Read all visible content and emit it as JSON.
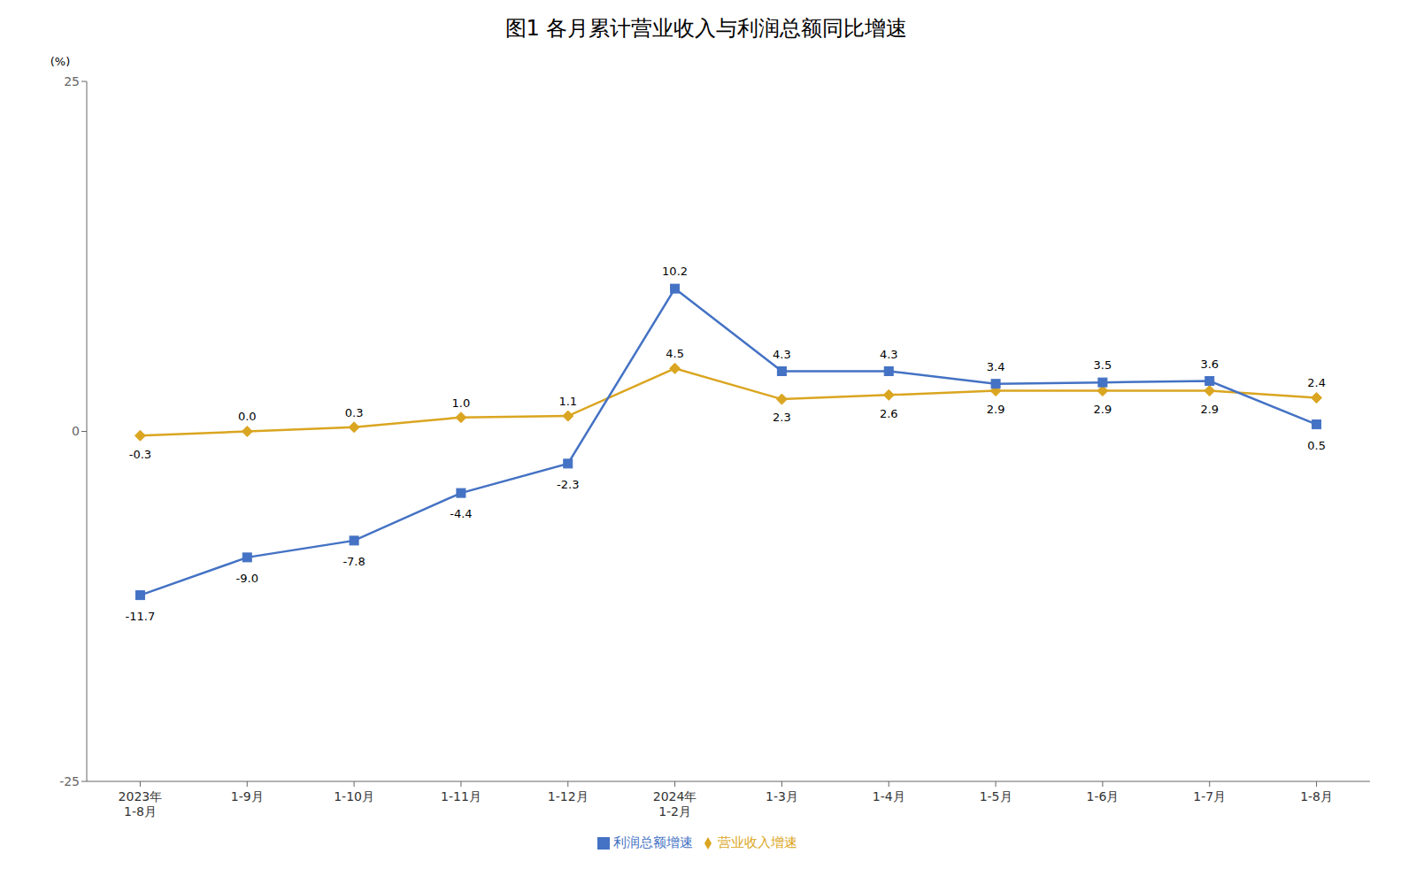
{
  "chart_data": {
    "type": "line",
    "title": "图1  各月累计营业收入与利润总额同比增速",
    "y_label": "(%)",
    "categories": [
      "2023年\n1-8月",
      "1-9月",
      "1-10月",
      "1-11月",
      "1-12月",
      "2024年\n1-2月",
      "1-3月",
      "1-4月",
      "1-5月",
      "1-6月",
      "1-7月",
      "1-8月"
    ],
    "series": [
      {
        "name": "营业收入增速",
        "color": "#DAA520",
        "marker": "diamond",
        "values": [
          -0.3,
          0.0,
          0.3,
          1.0,
          1.1,
          4.5,
          2.3,
          2.6,
          2.9,
          2.9,
          2.9,
          2.4
        ],
        "value_labels": [
          "-0.3",
          "0.0",
          "0.3",
          "1.0",
          "1.1",
          "4.5",
          "2.3",
          "2.6",
          "2.9",
          "2.9",
          "2.9",
          "2.4"
        ]
      },
      {
        "name": "利润总额增速",
        "color": "#4472C4",
        "marker": "square",
        "values": [
          -11.7,
          -9.0,
          -7.8,
          -4.4,
          -2.3,
          10.2,
          4.3,
          4.3,
          3.4,
          3.5,
          3.6,
          0.5
        ],
        "value_labels": [
          "-11.7",
          "-9.0",
          "-7.8",
          "-4.4",
          "-2.3",
          "10.2",
          "4.3",
          "4.3",
          "3.4",
          "3.5",
          "3.6",
          "0.5"
        ]
      }
    ],
    "ylim": [
      -25,
      25
    ],
    "yticks": [
      -25,
      0,
      25
    ],
    "grid": false,
    "legend": "bottom",
    "data_labels": true
  }
}
